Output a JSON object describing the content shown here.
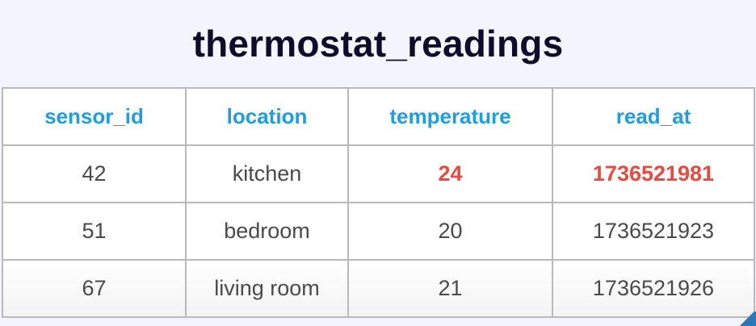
{
  "title": "thermostat_readings",
  "table": {
    "headers": [
      "sensor_id",
      "location",
      "temperature",
      "read_at"
    ],
    "rows": [
      [
        "42",
        "kitchen",
        "24",
        "1736521981"
      ],
      [
        "51",
        "bedroom",
        "20",
        "1736521923"
      ],
      [
        "67",
        "living room",
        "21",
        "1736521926"
      ]
    ]
  },
  "colors": {
    "background": "#f4f5fc",
    "title": "#0d0c2b",
    "header_text": "#1a9fe6",
    "cell_text": "#4a4a4a",
    "highlight": "#f0483e",
    "border": "#b9b9b9"
  }
}
